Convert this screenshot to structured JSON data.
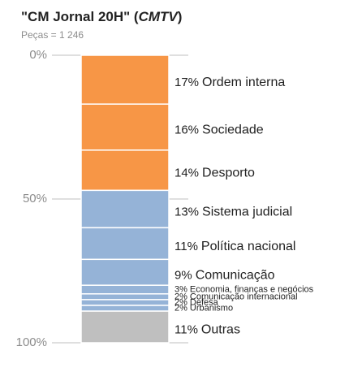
{
  "chart_data": {
    "type": "stacked-bar",
    "title": [
      "\"CM Jornal 20H\" (",
      "CMTV",
      ")"
    ],
    "subtitle": "Peças = 1 246",
    "categories": [
      "Ordem interna",
      "Sociedade",
      "Desporto",
      "Sistema judicial",
      "Política nacional",
      "Comunicação",
      "Economia, finanças e negócios",
      "Comunicação internacional",
      "Defesa",
      "Urbanismo",
      "Outras"
    ],
    "values": [
      17,
      16,
      14,
      13,
      11,
      9,
      3,
      2,
      2,
      2,
      11
    ],
    "value_labels": [
      "17%",
      "16%",
      "14%",
      "13%",
      "11%",
      "9%",
      "3%",
      "2%",
      "2%",
      "2%",
      "11%"
    ],
    "colors": [
      "#f79646",
      "#f79646",
      "#f79646",
      "#95b3d7",
      "#95b3d7",
      "#95b3d7",
      "#95b3d7",
      "#95b3d7",
      "#95b3d7",
      "#95b3d7",
      "#bfbfbf"
    ],
    "ylim": [
      0,
      100
    ],
    "y_reversed": true,
    "yticks": [
      {
        "value": 0,
        "label": "0%"
      },
      {
        "value": 50,
        "label": "50%"
      },
      {
        "value": 100,
        "label": "100%"
      }
    ],
    "grid": true
  }
}
